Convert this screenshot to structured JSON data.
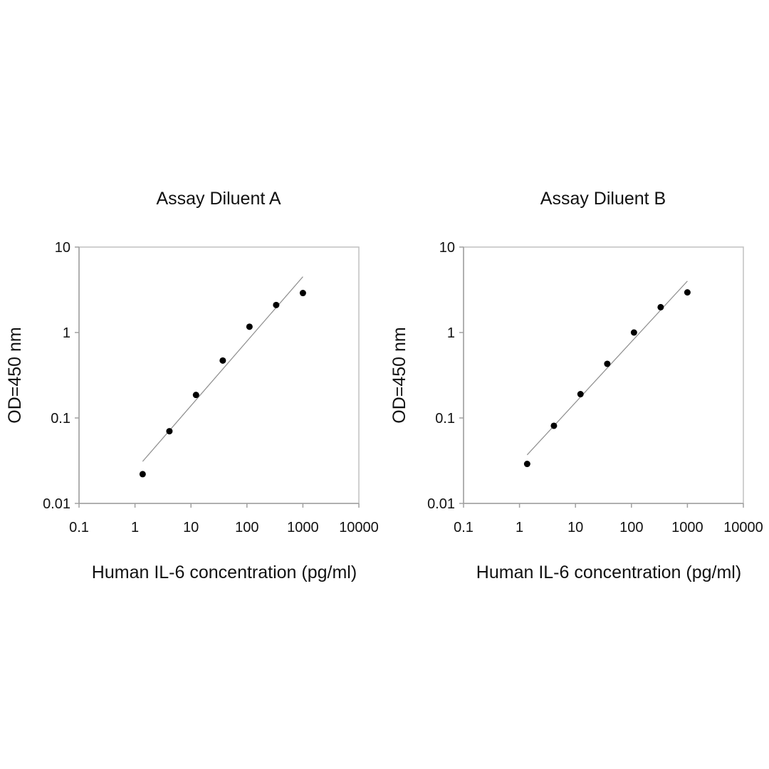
{
  "chart_data": [
    {
      "type": "scatter",
      "title": "Assay Diluent A",
      "xlabel": "Human IL-6 concentration (pg/ml)",
      "ylabel": "OD=450 nm",
      "x_scale": "log",
      "y_scale": "log",
      "xlim": [
        0.1,
        10000
      ],
      "ylim": [
        0.01,
        10
      ],
      "x_ticks": [
        "0.1",
        "1",
        "10",
        "100",
        "1000",
        "10000"
      ],
      "y_ticks": [
        "0.01",
        "0.1",
        "1",
        "10"
      ],
      "grid": false,
      "series": [
        {
          "x": [
            1.37,
            4.12,
            12.3,
            37.0,
            111,
            333,
            1000
          ],
          "y": [
            0.022,
            0.07,
            0.186,
            0.47,
            1.17,
            2.1,
            2.9
          ]
        }
      ],
      "trendline": {
        "x": [
          1.37,
          1000
        ],
        "y": [
          0.031,
          4.5
        ]
      }
    },
    {
      "type": "scatter",
      "title": "Assay Diluent B",
      "xlabel": "Human IL-6 concentration (pg/ml)",
      "ylabel": "OD=450 nm",
      "x_scale": "log",
      "y_scale": "log",
      "xlim": [
        0.1,
        10000
      ],
      "ylim": [
        0.01,
        10
      ],
      "x_ticks": [
        "0.1",
        "1",
        "10",
        "100",
        "1000",
        "10000"
      ],
      "y_ticks": [
        "0.01",
        "0.1",
        "1",
        "10"
      ],
      "grid": false,
      "series": [
        {
          "x": [
            1.37,
            4.12,
            12.3,
            37.0,
            111,
            333,
            1000
          ],
          "y": [
            0.029,
            0.081,
            0.19,
            0.43,
            1.0,
            1.98,
            2.95
          ]
        }
      ],
      "trendline": {
        "x": [
          1.37,
          1000
        ],
        "y": [
          0.037,
          4.0
        ]
      }
    }
  ]
}
